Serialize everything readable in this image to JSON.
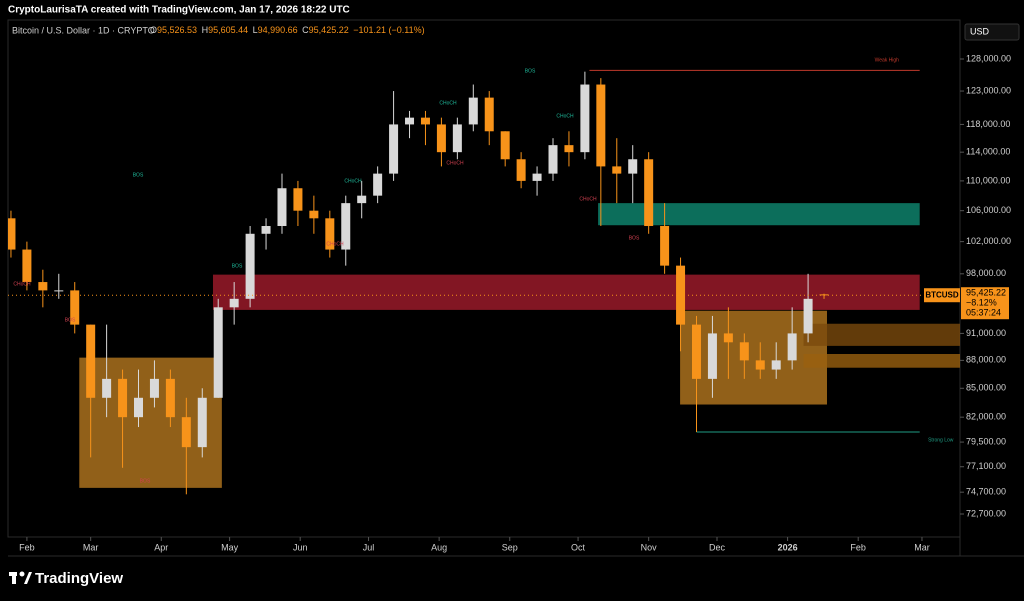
{
  "header": {
    "credit": "CryptoLaurisaTA created with TradingView.com, Jan 17, 2026 18:22 UTC",
    "symbol_line": "Bitcoin / U.S. Dollar · 1D · CRYPTO",
    "ohlc": [
      {
        "label": "O",
        "value": "95,526.53"
      },
      {
        "label": "H",
        "value": "95,605.44"
      },
      {
        "label": "L",
        "value": "94,990.66"
      },
      {
        "label": "C",
        "value": "95,425.22"
      }
    ],
    "change": "−101.21 (−0.11%)",
    "currency": "USD"
  },
  "footer": {
    "brand": "TradingView"
  },
  "chart_data": {
    "type": "candlestick",
    "log": true,
    "x": [
      -7,
      0,
      7,
      14,
      21,
      28,
      35,
      42,
      49,
      56,
      63,
      70,
      77,
      84,
      91,
      98,
      105,
      112,
      119,
      126,
      133,
      140,
      147,
      154,
      161,
      168,
      175,
      182,
      189,
      196,
      203,
      210,
      217,
      224,
      231,
      238,
      245,
      252,
      259,
      266,
      273,
      280,
      287,
      294,
      301,
      308,
      315,
      322,
      329,
      336,
      343,
      350
    ],
    "open": [
      105000,
      101000,
      97000,
      96000,
      96000,
      92000,
      84000,
      86000,
      82000,
      84000,
      86000,
      82000,
      79000,
      84000,
      94000,
      95000,
      103000,
      104000,
      109000,
      106000,
      105000,
      101000,
      107000,
      108000,
      111000,
      118000,
      119000,
      118000,
      114000,
      118000,
      122000,
      117000,
      113000,
      110000,
      111000,
      115000,
      114000,
      124000,
      112000,
      111000,
      113000,
      104000,
      99000,
      92000,
      86000,
      91000,
      90000,
      88000,
      87000,
      88000,
      91000,
      95526.53
    ],
    "high": [
      106000,
      102000,
      98500,
      98000,
      97000,
      92000,
      92000,
      87000,
      87000,
      88000,
      87000,
      84000,
      85000,
      95000,
      97000,
      104000,
      105000,
      111000,
      110000,
      108000,
      106000,
      108000,
      110000,
      112000,
      123000,
      120000,
      120000,
      119000,
      119000,
      124000,
      123000,
      117000,
      114000,
      112000,
      116000,
      117000,
      126000,
      125000,
      116000,
      115000,
      114000,
      107000,
      100000,
      93000,
      93000,
      94000,
      91000,
      90000,
      90000,
      94000,
      98000,
      95605.44
    ],
    "low": [
      100000,
      96000,
      94000,
      95000,
      91000,
      78000,
      82000,
      77000,
      81000,
      83000,
      81000,
      74500,
      78000,
      84000,
      92000,
      94000,
      101000,
      103000,
      104000,
      103000,
      100000,
      99000,
      105000,
      107000,
      110000,
      116000,
      115000,
      112000,
      113000,
      117000,
      115000,
      112000,
      109000,
      108000,
      110000,
      112000,
      113000,
      104000,
      107000,
      107000,
      103000,
      98000,
      89000,
      80500,
      84000,
      86000,
      86000,
      86000,
      86000,
      87000,
      90000,
      94990.66
    ],
    "close": [
      101000,
      97000,
      96000,
      96000,
      92000,
      84000,
      86000,
      82000,
      84000,
      86000,
      82000,
      79000,
      84000,
      94000,
      95000,
      103000,
      104000,
      109000,
      106000,
      105000,
      101000,
      107000,
      108000,
      111000,
      118000,
      119000,
      118000,
      114000,
      118000,
      122000,
      117000,
      113000,
      110000,
      111000,
      115000,
      114000,
      124000,
      112000,
      111000,
      113000,
      104000,
      99000,
      92000,
      86000,
      91000,
      90000,
      88000,
      87000,
      88000,
      91000,
      95000,
      95425.22
    ],
    "up_color": "#d9d9d9",
    "down_color": "#f7931a",
    "xlim": [
      -8.3,
      409.7
    ],
    "xticks": [
      {
        "value": 0,
        "label": "Feb"
      },
      {
        "value": 28,
        "label": "Mar"
      },
      {
        "value": 59,
        "label": "Apr"
      },
      {
        "value": 89,
        "label": "May"
      },
      {
        "value": 120,
        "label": "Jun"
      },
      {
        "value": 150,
        "label": "Jul"
      },
      {
        "value": 181,
        "label": "Aug"
      },
      {
        "value": 212,
        "label": "Sep"
      },
      {
        "value": 242,
        "label": "Oct"
      },
      {
        "value": 273,
        "label": "Nov"
      },
      {
        "value": 303,
        "label": "Dec"
      },
      {
        "value": 334,
        "label": "2026"
      },
      {
        "value": 365,
        "label": "Feb"
      },
      {
        "value": 393,
        "label": "Mar"
      }
    ],
    "ylim": [
      70650,
      134360
    ],
    "yticks": [
      {
        "value": 128000,
        "label": "128,000.00"
      },
      {
        "value": 123000,
        "label": "123,000.00"
      },
      {
        "value": 118000,
        "label": "118,000.00"
      },
      {
        "value": 114000,
        "label": "114,000.00"
      },
      {
        "value": 110000,
        "label": "110,000.00"
      },
      {
        "value": 106000,
        "label": "106,000.00"
      },
      {
        "value": 102000,
        "label": "102,000.00"
      },
      {
        "value": 98000,
        "label": "98,000.00"
      },
      {
        "value": 91000,
        "label": "91,000.00"
      },
      {
        "value": 88000,
        "label": "88,000.00"
      },
      {
        "value": 85000,
        "label": "85,000.00"
      },
      {
        "value": 82000,
        "label": "82,000.00"
      },
      {
        "value": 79500,
        "label": "79,500.00"
      },
      {
        "value": 77100,
        "label": "77,100.00"
      },
      {
        "value": 74700,
        "label": "74,700.00"
      },
      {
        "value": 72700,
        "label": "72,700.00"
      }
    ],
    "zones": [
      {
        "x0": 23,
        "x1": 85.6,
        "low": 75100,
        "high": 88300,
        "color": "#b5781f"
      },
      {
        "x0": 81.7,
        "x1": 392,
        "low": 93700,
        "high": 97900,
        "color": "#a31c2c"
      },
      {
        "x0": 250.8,
        "x1": 392,
        "low": 104100,
        "high": 107000,
        "color": "#0f8a72"
      },
      {
        "x0": 286.8,
        "x1": 351.3,
        "low": 83300,
        "high": 93600,
        "color": "#b5781f"
      },
      {
        "x0": 341,
        "x1": 409.7,
        "low": 89600,
        "high": 92100,
        "color": "#7a4a0c"
      },
      {
        "x0": 341,
        "x1": 409.7,
        "low": 87200,
        "high": 88700,
        "color": "#9a600f"
      }
    ],
    "levels": [
      {
        "x0": 247,
        "x1": 392,
        "value": 126200,
        "label": "Weak High",
        "color": "#c0392b"
      },
      {
        "x0": 294,
        "x1": 392,
        "value": 80500,
        "label": "Strong Low",
        "color": "#1f9c84"
      }
    ],
    "annotations": [
      {
        "text": "BOS",
        "color": "#1fb89a"
      },
      {
        "text": "BOS",
        "color": "#1fb89a"
      },
      {
        "text": "BOS",
        "color": "#1fb89a"
      },
      {
        "text": "CHoCH",
        "color": "#1fb89a"
      },
      {
        "text": "CHoCH",
        "color": "#1fb89a"
      },
      {
        "text": "CHoCH",
        "color": "#1fb89a"
      },
      {
        "text": "CHoCH",
        "color": "#d04050"
      },
      {
        "text": "CHoCH",
        "color": "#d04050"
      },
      {
        "text": "CHoCH",
        "color": "#d04050"
      },
      {
        "text": "CHoCH",
        "color": "#d04050"
      },
      {
        "text": "BOS",
        "color": "#d04050"
      },
      {
        "text": "BOS",
        "color": "#d04050"
      },
      {
        "text": "BOS",
        "color": "#d04050"
      }
    ],
    "last_price": {
      "symbol": "BTCUSD",
      "value": 95425.22,
      "label": "95,425.22",
      "change": "−8.12%",
      "countdown": "05:37:24",
      "color": "#f7931a"
    }
  }
}
